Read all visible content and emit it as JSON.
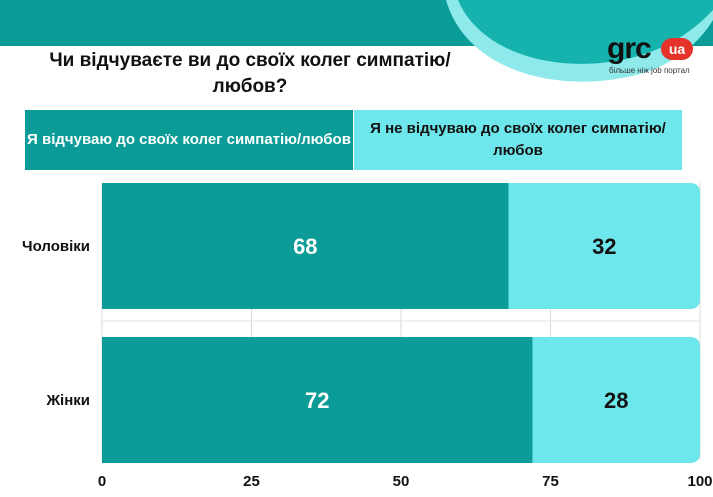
{
  "title": "Чи відчуваєте ви до своїх колег симпатію/любов?",
  "logo": {
    "brand": "grc",
    "badge": "ua",
    "tagline": "більше ніж job портал"
  },
  "colors": {
    "band": "#0b9c97",
    "series_a": "#0b9c97",
    "series_b": "#6ee7ec",
    "logo_badge": "#e6332a"
  },
  "chart_data": {
    "type": "bar",
    "orientation": "horizontal",
    "stacked": true,
    "categories": [
      "Чоловіки",
      "Жінки"
    ],
    "series": [
      {
        "name": "Я відчуваю до своїх колег симпатію/любов",
        "values": [
          68,
          72
        ]
      },
      {
        "name": "Я  не відчуваю до своїх колег симпатію/любов",
        "values": [
          32,
          28
        ]
      }
    ],
    "xlim": [
      0,
      100
    ],
    "xticks": [
      0,
      25,
      50,
      75,
      100
    ],
    "grid": true,
    "legend": "top"
  }
}
